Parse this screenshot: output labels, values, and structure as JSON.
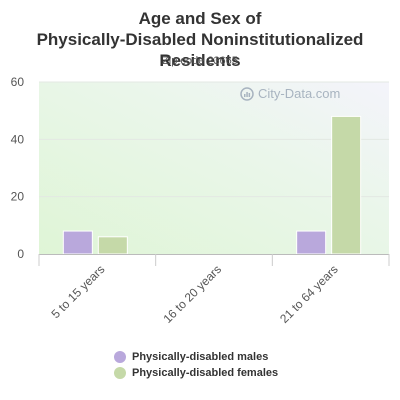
{
  "chart_data": {
    "type": "bar",
    "title": "Age and Sex of Physically-Disabled Noninstitutionalized Residents",
    "subtitle": "Zip code 23665",
    "categories": [
      "5 to 15 years",
      "16 to 20 years",
      "21 to 64 years"
    ],
    "series": [
      {
        "name": "Physically-disabled males",
        "values": [
          8,
          0,
          8
        ],
        "color": "#b9a8dc"
      },
      {
        "name": "Physically-disabled females",
        "values": [
          6,
          0,
          48
        ],
        "color": "#c5d9a8"
      }
    ],
    "ylim": [
      0,
      60
    ],
    "yticks": [
      0,
      20,
      40,
      60
    ],
    "grid": true,
    "legend_position": "bottom"
  },
  "watermark": "City-Data.com"
}
